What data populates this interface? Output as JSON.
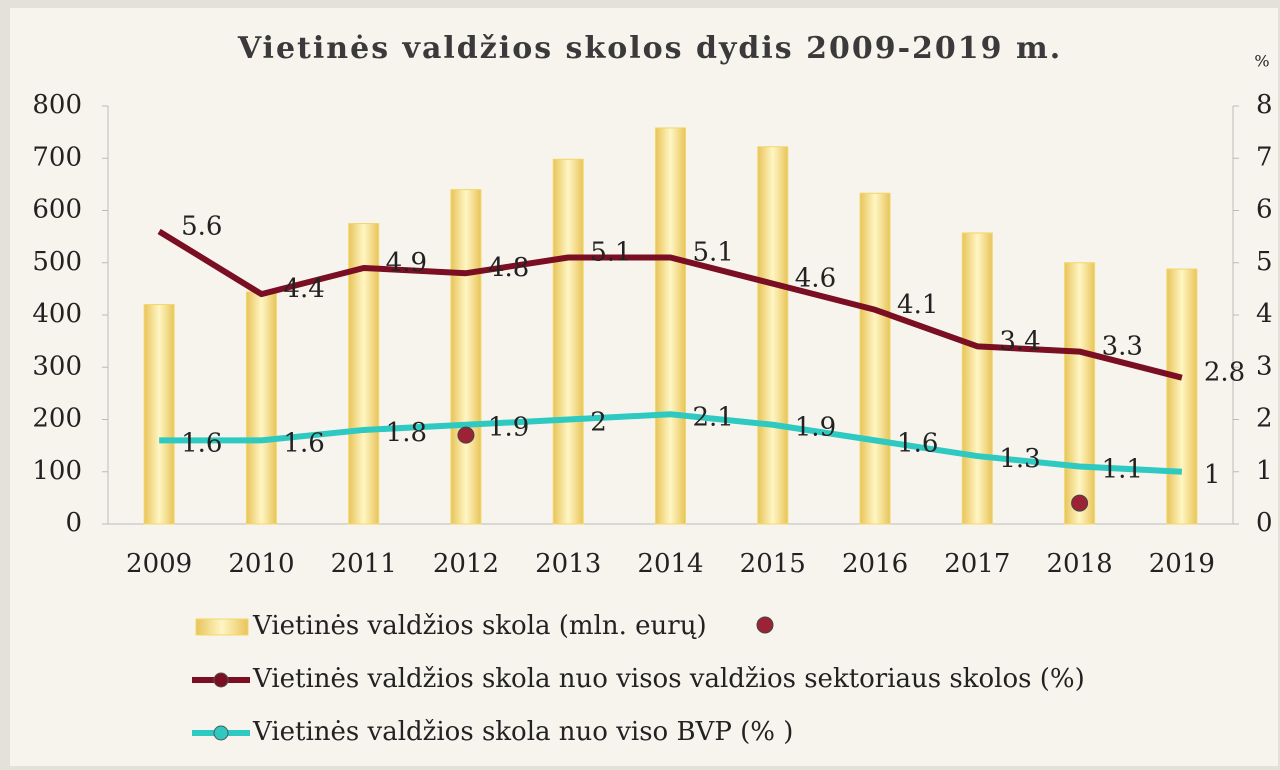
{
  "chart_data": {
    "type": "bar-line",
    "title": "Vietinės valdžios skolos dydis 2009-2019 m.",
    "y2label": "%",
    "categories": [
      "2009",
      "2010",
      "2011",
      "2012",
      "2013",
      "2014",
      "2015",
      "2016",
      "2017",
      "2018",
      "2019"
    ],
    "series": [
      {
        "name": "Vietinės valdžios skola (mln. eurų)",
        "type": "bar",
        "color": "#f3d768",
        "values": [
          420,
          444,
          575,
          640,
          698,
          758,
          722,
          633,
          557,
          500,
          488
        ]
      },
      {
        "name": "Vietinės valdžios skola nuo visos valdžios sektoriaus skolos (%)",
        "type": "line",
        "axis": "y2",
        "color": "#7a0e22",
        "values": [
          5.6,
          4.4,
          4.9,
          4.8,
          5.1,
          5.1,
          4.6,
          4.1,
          3.4,
          3.3,
          2.8
        ]
      },
      {
        "name": "Vietinės valdžios skola nuo viso BVP (% )",
        "type": "line",
        "axis": "y2",
        "color": "#2ec9c0",
        "values": [
          1.6,
          1.6,
          1.8,
          1.9,
          2,
          2.1,
          1.9,
          1.6,
          1.3,
          1.1,
          1
        ]
      },
      {
        "type": "scatter",
        "axis": "y2",
        "color": "#9b2335",
        "values": [
          null,
          null,
          null,
          1.7,
          null,
          null,
          null,
          null,
          null,
          0.4,
          null
        ]
      }
    ],
    "ylim": [
      0,
      800
    ],
    "yticks": [
      0,
      100,
      200,
      300,
      400,
      500,
      600,
      700,
      800
    ],
    "y2lim": [
      0,
      8
    ],
    "y2ticks": [
      0,
      1,
      2,
      3,
      4,
      5,
      6,
      7,
      8
    ],
    "legend": "bottom"
  }
}
